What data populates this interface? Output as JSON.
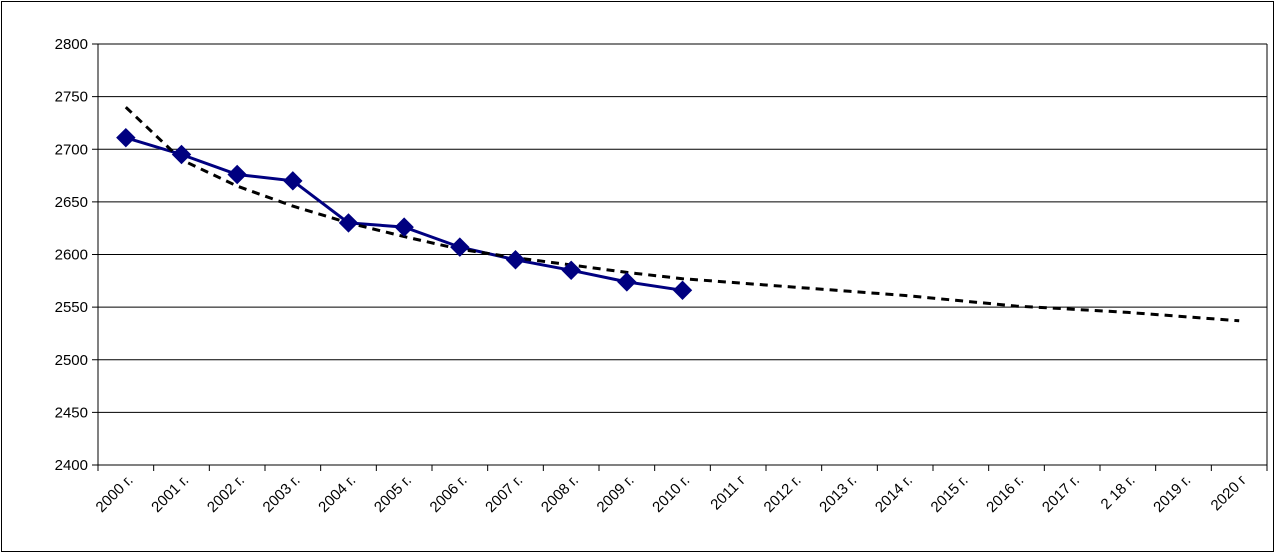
{
  "chart_data": {
    "type": "line",
    "title": "",
    "xlabel": "",
    "ylabel": "",
    "ylim": [
      2400,
      2800
    ],
    "yticks": [
      2400,
      2450,
      2500,
      2550,
      2600,
      2650,
      2700,
      2750,
      2800
    ],
    "grid": true,
    "legend": "none",
    "categories": [
      "2000 г.",
      "2001 г.",
      "2002 г.",
      "2003 г.",
      "2004 г.",
      "2005 г.",
      "2006 г.",
      "2007 г.",
      "2008 г.",
      "2009 г.",
      "2010 г.",
      "2011 г",
      "2012 г.",
      "2013 г.",
      "2014 г.",
      "2015 г.",
      "2016 г.",
      "2017 г.",
      "2 18 г.",
      "2019 г.",
      "2020 г"
    ],
    "series": [
      {
        "style": "solid-with-diamond-markers",
        "color": "#000080",
        "values": [
          2711,
          2695,
          2676,
          2670,
          2630,
          2626,
          2607,
          2595,
          2585,
          2574,
          2566,
          null,
          null,
          null,
          null,
          null,
          null,
          null,
          null,
          null,
          null
        ]
      },
      {
        "style": "dotted-trend",
        "color": "#000000",
        "values": [
          2740,
          2690,
          2665,
          2646,
          2630,
          2617,
          2605,
          2597,
          2590,
          2583,
          2577,
          2573,
          2569,
          2565,
          2561,
          2556,
          2551,
          2548,
          2545,
          2541,
          2537
        ]
      }
    ]
  }
}
